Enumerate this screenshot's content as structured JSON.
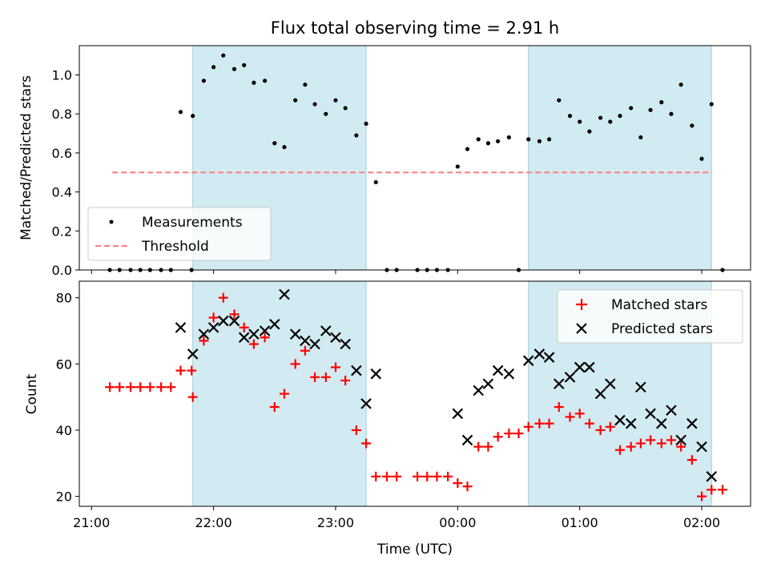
{
  "title": "Flux total observing time = 2.91 h",
  "shaded_color": "#add8e6",
  "chart_data": [
    {
      "type": "scatter",
      "ylabel": "Matched/Predicted stars",
      "xlabel": "",
      "ylim": [
        0,
        1.15
      ],
      "xlim_hours": [
        20.9,
        26.4
      ],
      "y_ticks": [
        0.0,
        0.2,
        0.4,
        0.6,
        0.8,
        1.0
      ],
      "y_tick_labels": [
        "0.0",
        "0.2",
        "0.4",
        "0.6",
        "0.8",
        "1.0"
      ],
      "shaded_ranges_hours": [
        [
          21.83,
          23.25
        ],
        [
          24.58,
          26.08
        ]
      ],
      "legend": {
        "placement": "lower-left",
        "entries": [
          "Measurements",
          "Threshold"
        ]
      },
      "threshold": {
        "name": "Threshold",
        "value": 0.5,
        "x_range_hours": [
          21.17,
          26.08
        ],
        "color": "#ff7f7f",
        "style": "dashed"
      },
      "series": [
        {
          "name": "Measurements",
          "color": "#000000",
          "marker": "dot",
          "points": [
            [
              21.15,
              0.0
            ],
            [
              21.23,
              0.0
            ],
            [
              21.32,
              0.0
            ],
            [
              21.4,
              0.0
            ],
            [
              21.48,
              0.0
            ],
            [
              21.57,
              0.0
            ],
            [
              21.65,
              0.0
            ],
            [
              21.73,
              0.81
            ],
            [
              21.82,
              0.0
            ],
            [
              21.83,
              0.79
            ],
            [
              21.92,
              0.97
            ],
            [
              22.0,
              1.04
            ],
            [
              22.08,
              1.1
            ],
            [
              22.17,
              1.03
            ],
            [
              22.25,
              1.05
            ],
            [
              22.33,
              0.96
            ],
            [
              22.42,
              0.97
            ],
            [
              22.5,
              0.65
            ],
            [
              22.58,
              0.63
            ],
            [
              22.67,
              0.87
            ],
            [
              22.75,
              0.95
            ],
            [
              22.83,
              0.85
            ],
            [
              22.92,
              0.8
            ],
            [
              23.0,
              0.87
            ],
            [
              23.08,
              0.83
            ],
            [
              23.17,
              0.69
            ],
            [
              23.25,
              0.75
            ],
            [
              23.33,
              0.45
            ],
            [
              23.42,
              0.0
            ],
            [
              23.5,
              0.0
            ],
            [
              23.67,
              0.0
            ],
            [
              23.75,
              0.0
            ],
            [
              23.83,
              0.0
            ],
            [
              23.92,
              0.0
            ],
            [
              24.0,
              0.53
            ],
            [
              24.08,
              0.62
            ],
            [
              24.17,
              0.67
            ],
            [
              24.25,
              0.65
            ],
            [
              24.33,
              0.66
            ],
            [
              24.42,
              0.68
            ],
            [
              24.5,
              0.0
            ],
            [
              24.58,
              0.67
            ],
            [
              24.67,
              0.66
            ],
            [
              24.75,
              0.67
            ],
            [
              24.83,
              0.87
            ],
            [
              24.92,
              0.79
            ],
            [
              25.0,
              0.76
            ],
            [
              25.08,
              0.71
            ],
            [
              25.17,
              0.78
            ],
            [
              25.25,
              0.76
            ],
            [
              25.33,
              0.79
            ],
            [
              25.42,
              0.83
            ],
            [
              25.5,
              0.68
            ],
            [
              25.58,
              0.82
            ],
            [
              25.67,
              0.86
            ],
            [
              25.75,
              0.8
            ],
            [
              25.83,
              0.95
            ],
            [
              25.92,
              0.74
            ],
            [
              26.0,
              0.57
            ],
            [
              26.08,
              0.85
            ],
            [
              26.17,
              0.0
            ]
          ]
        }
      ]
    },
    {
      "type": "scatter",
      "ylabel": "Count",
      "xlabel": "Time (UTC)",
      "ylim": [
        17,
        85
      ],
      "xlim_hours": [
        20.9,
        26.4
      ],
      "y_ticks": [
        20,
        40,
        60,
        80
      ],
      "y_tick_labels": [
        "20",
        "40",
        "60",
        "80"
      ],
      "x_ticks_hours": [
        21,
        22,
        23,
        24,
        25,
        26
      ],
      "x_tick_labels": [
        "21:00",
        "22:00",
        "23:00",
        "00:00",
        "01:00",
        "02:00"
      ],
      "shaded_ranges_hours": [
        [
          21.83,
          23.25
        ],
        [
          24.58,
          26.08
        ]
      ],
      "legend": {
        "placement": "top-right",
        "entries": [
          "Matched stars",
          "Predicted stars"
        ]
      },
      "series": [
        {
          "name": "Matched stars",
          "color": "#ff0000",
          "marker": "plus",
          "points": [
            [
              21.15,
              53
            ],
            [
              21.23,
              53
            ],
            [
              21.32,
              53
            ],
            [
              21.4,
              53
            ],
            [
              21.48,
              53
            ],
            [
              21.57,
              53
            ],
            [
              21.65,
              53
            ],
            [
              21.73,
              58
            ],
            [
              21.82,
              58
            ],
            [
              21.83,
              50
            ],
            [
              21.92,
              67
            ],
            [
              22.0,
              74
            ],
            [
              22.08,
              80
            ],
            [
              22.17,
              75
            ],
            [
              22.25,
              71
            ],
            [
              22.33,
              66
            ],
            [
              22.42,
              68
            ],
            [
              22.5,
              47
            ],
            [
              22.58,
              51
            ],
            [
              22.67,
              60
            ],
            [
              22.75,
              64
            ],
            [
              22.83,
              56
            ],
            [
              22.92,
              56
            ],
            [
              23.0,
              59
            ],
            [
              23.08,
              55
            ],
            [
              23.17,
              40
            ],
            [
              23.25,
              36
            ],
            [
              23.33,
              26
            ],
            [
              23.42,
              26
            ],
            [
              23.5,
              26
            ],
            [
              23.67,
              26
            ],
            [
              23.75,
              26
            ],
            [
              23.83,
              26
            ],
            [
              23.92,
              26
            ],
            [
              24.0,
              24
            ],
            [
              24.08,
              23
            ],
            [
              24.17,
              35
            ],
            [
              24.25,
              35
            ],
            [
              24.33,
              38
            ],
            [
              24.42,
              39
            ],
            [
              24.5,
              39
            ],
            [
              24.58,
              41
            ],
            [
              24.67,
              42
            ],
            [
              24.75,
              42
            ],
            [
              24.83,
              47
            ],
            [
              24.92,
              44
            ],
            [
              25.0,
              45
            ],
            [
              25.08,
              42
            ],
            [
              25.17,
              40
            ],
            [
              25.25,
              41
            ],
            [
              25.33,
              34
            ],
            [
              25.42,
              35
            ],
            [
              25.5,
              36
            ],
            [
              25.58,
              37
            ],
            [
              25.67,
              36
            ],
            [
              25.75,
              37
            ],
            [
              25.83,
              35
            ],
            [
              25.92,
              31
            ],
            [
              26.0,
              20
            ],
            [
              26.08,
              22
            ],
            [
              26.17,
              22
            ]
          ]
        },
        {
          "name": "Predicted stars",
          "color": "#000000",
          "marker": "x",
          "points": [
            [
              21.73,
              71
            ],
            [
              21.83,
              63
            ],
            [
              21.92,
              69
            ],
            [
              22.0,
              71
            ],
            [
              22.08,
              73
            ],
            [
              22.17,
              73
            ],
            [
              22.25,
              68
            ],
            [
              22.33,
              69
            ],
            [
              22.42,
              70
            ],
            [
              22.5,
              72
            ],
            [
              22.58,
              81
            ],
            [
              22.67,
              69
            ],
            [
              22.75,
              67
            ],
            [
              22.83,
              66
            ],
            [
              22.92,
              70
            ],
            [
              23.0,
              68
            ],
            [
              23.08,
              66
            ],
            [
              23.17,
              58
            ],
            [
              23.25,
              48
            ],
            [
              23.33,
              57
            ],
            [
              24.0,
              45
            ],
            [
              24.08,
              37
            ],
            [
              24.17,
              52
            ],
            [
              24.25,
              54
            ],
            [
              24.33,
              58
            ],
            [
              24.42,
              57
            ],
            [
              24.58,
              61
            ],
            [
              24.67,
              63
            ],
            [
              24.75,
              62
            ],
            [
              24.83,
              54
            ],
            [
              24.92,
              56
            ],
            [
              25.0,
              59
            ],
            [
              25.08,
              59
            ],
            [
              25.17,
              51
            ],
            [
              25.25,
              54
            ],
            [
              25.33,
              43
            ],
            [
              25.42,
              42
            ],
            [
              25.5,
              53
            ],
            [
              25.58,
              45
            ],
            [
              25.67,
              42
            ],
            [
              25.75,
              46
            ],
            [
              25.83,
              37
            ],
            [
              25.92,
              42
            ],
            [
              26.0,
              35
            ],
            [
              26.08,
              26
            ]
          ]
        }
      ]
    }
  ]
}
